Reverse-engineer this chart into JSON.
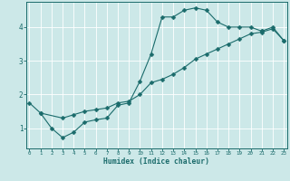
{
  "title": "",
  "xlabel": "Humidex (Indice chaleur)",
  "ylabel": "",
  "background_color": "#cce8e8",
  "grid_color": "#ffffff",
  "line_color": "#1a6b6b",
  "x_ticks": [
    0,
    1,
    2,
    3,
    4,
    5,
    6,
    7,
    8,
    9,
    10,
    11,
    12,
    13,
    14,
    15,
    16,
    17,
    18,
    19,
    20,
    21,
    22,
    23
  ],
  "y_ticks": [
    1,
    2,
    3,
    4
  ],
  "xlim": [
    -0.3,
    23.3
  ],
  "ylim": [
    0.4,
    4.75
  ],
  "series": [
    {
      "x": [
        0,
        1,
        2,
        3,
        4,
        5,
        6,
        7,
        8,
        9,
        10,
        11,
        12,
        13,
        14,
        15,
        16,
        17,
        18,
        19,
        20,
        21
      ],
      "y": [
        1.75,
        1.45,
        1.0,
        0.72,
        0.88,
        1.18,
        1.25,
        1.3,
        1.68,
        1.75,
        2.4,
        3.2,
        4.3,
        4.3,
        4.5,
        4.57,
        4.5,
        4.15,
        4.0,
        4.0,
        4.0,
        3.88
      ],
      "marker": "D",
      "markersize": 2.5,
      "linewidth": 0.8
    },
    {
      "x": [
        21,
        22,
        23
      ],
      "y": [
        3.88,
        4.0,
        3.6
      ],
      "marker": "D",
      "markersize": 2.5,
      "linewidth": 0.8
    },
    {
      "x": [
        1,
        3,
        4,
        5,
        6,
        7,
        8,
        9,
        10,
        11,
        12,
        13,
        14,
        15,
        16,
        17,
        18,
        19,
        20,
        21,
        22,
        23
      ],
      "y": [
        1.45,
        1.3,
        1.4,
        1.5,
        1.55,
        1.6,
        1.75,
        1.8,
        2.0,
        2.35,
        2.45,
        2.6,
        2.8,
        3.05,
        3.2,
        3.35,
        3.5,
        3.65,
        3.8,
        3.85,
        3.95,
        3.6
      ],
      "marker": "D",
      "markersize": 2.5,
      "linewidth": 0.8
    }
  ]
}
